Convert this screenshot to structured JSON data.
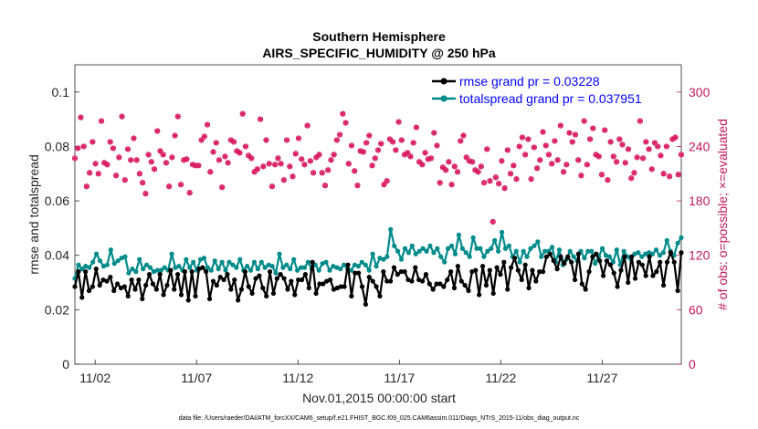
{
  "chart_data": {
    "type": "line",
    "title": "Southern Hemisphere",
    "subtitle": "AIRS_SPECIFIC_HUMIDITY @ 250 hPa",
    "xlabel": "Nov.01,2015 00:00:00 start",
    "ylabel_left": "rmse and totalspread",
    "ylabel_right": "# of obs: o=possible; ×=evaluated",
    "footnote": "data file: /Users/raeder/DAI/ATM_forcXX/CAM6_setup/f.e21.FHIST_BGC.f09_025.CAM6assim.011/Diags_NTrS_2015-11/obs_diag_output.nc",
    "x_ticks": [
      "11/02",
      "11/07",
      "11/12",
      "11/17",
      "11/22",
      "11/27"
    ],
    "x_tick_days": [
      2,
      7,
      12,
      17,
      22,
      27
    ],
    "xlim_days": [
      1.0,
      30.9
    ],
    "ylim_left": [
      0,
      0.11
    ],
    "yticks_left": [
      "0",
      "0.02",
      "0.04",
      "0.06",
      "0.08",
      "0.1"
    ],
    "yticks_left_values": [
      0,
      0.02,
      0.04,
      0.06,
      0.08,
      0.1
    ],
    "ylim_right": [
      0,
      330
    ],
    "yticks_right": [
      "0",
      "60",
      "120",
      "180",
      "240",
      "300"
    ],
    "yticks_right_values": [
      0,
      60,
      120,
      180,
      240,
      300
    ],
    "colors": {
      "rmse": "#000000",
      "spread": "#008b8b",
      "obs": "#d81b60",
      "legend_text": "#0000ff"
    },
    "legend": [
      {
        "name": "rmse grand pr = 0.03228",
        "color": "#000000"
      },
      {
        "name": "totalspread grand pr = 0.037951",
        "color": "#008b8b"
      }
    ],
    "series": [
      {
        "name": "rmse",
        "values": [
          0.0285,
          0.034,
          0.0245,
          0.034,
          0.027,
          0.0285,
          0.035,
          0.029,
          0.031,
          0.0305,
          0.032,
          0.027,
          0.0295,
          0.028,
          0.0285,
          0.025,
          0.031,
          0.0275,
          0.031,
          0.024,
          0.029,
          0.033,
          0.0295,
          0.0275,
          0.033,
          0.0255,
          0.029,
          0.0345,
          0.0275,
          0.033,
          0.0255,
          0.034,
          0.0235,
          0.034,
          0.025,
          0.035,
          0.0355,
          0.034,
          0.024,
          0.0305,
          0.029,
          0.032,
          0.031,
          0.033,
          0.0275,
          0.031,
          0.0235,
          0.0275,
          0.034,
          0.0285,
          0.026,
          0.0315,
          0.0325,
          0.028,
          0.025,
          0.034,
          0.026,
          0.0315,
          0.033,
          0.0315,
          0.0275,
          0.0305,
          0.0255,
          0.031,
          0.031,
          0.033,
          0.028,
          0.0375,
          0.026,
          0.0295,
          0.0295,
          0.0305,
          0.031,
          0.0275,
          0.028,
          0.0285,
          0.0285,
          0.0365,
          0.025,
          0.0335,
          0.0335,
          0.0285,
          0.022,
          0.032,
          0.0305,
          0.0285,
          0.025,
          0.034,
          0.0305,
          0.0305,
          0.0355,
          0.033,
          0.034,
          0.034,
          0.031,
          0.0305,
          0.0355,
          0.031,
          0.0305,
          0.033,
          0.0295,
          0.0275,
          0.0295,
          0.0295,
          0.0285,
          0.031,
          0.034,
          0.028,
          0.036,
          0.0305,
          0.029,
          0.027,
          0.034,
          0.0345,
          0.0255,
          0.036,
          0.029,
          0.0345,
          0.026,
          0.0355,
          0.033,
          0.0375,
          0.0275,
          0.0355,
          0.039,
          0.0345,
          0.031,
          0.0365,
          0.028,
          0.0345,
          0.0305,
          0.034,
          0.034,
          0.0395,
          0.0405,
          0.038,
          0.035,
          0.0395,
          0.037,
          0.0395,
          0.0375,
          0.031,
          0.0405,
          0.0295,
          0.0275,
          0.034,
          0.0395,
          0.0405,
          0.038,
          0.0325,
          0.038,
          0.0365,
          0.0335,
          0.0285,
          0.0345,
          0.0395,
          0.03,
          0.0395,
          0.0315,
          0.0375,
          0.0365,
          0.0325,
          0.0395,
          0.0325,
          0.034,
          0.0375,
          0.029,
          0.0375,
          0.041,
          0.0375,
          0.027,
          0.041
        ]
      },
      {
        "name": "totalspread",
        "values": [
          0.0315,
          0.0365,
          0.035,
          0.036,
          0.0355,
          0.0375,
          0.0405,
          0.038,
          0.036,
          0.0365,
          0.042,
          0.037,
          0.038,
          0.039,
          0.0395,
          0.0335,
          0.035,
          0.034,
          0.0385,
          0.035,
          0.0365,
          0.0355,
          0.034,
          0.0345,
          0.0345,
          0.0355,
          0.0345,
          0.0405,
          0.0355,
          0.036,
          0.0345,
          0.0385,
          0.0355,
          0.0375,
          0.0345,
          0.0385,
          0.039,
          0.0355,
          0.0345,
          0.038,
          0.035,
          0.0375,
          0.0345,
          0.0375,
          0.0365,
          0.0355,
          0.0385,
          0.0345,
          0.036,
          0.0345,
          0.0375,
          0.035,
          0.0375,
          0.0355,
          0.0365,
          0.036,
          0.0335,
          0.0405,
          0.0355,
          0.0365,
          0.035,
          0.0385,
          0.0345,
          0.0355,
          0.0355,
          0.0375,
          0.035,
          0.0365,
          0.0345,
          0.037,
          0.0375,
          0.0345,
          0.036,
          0.0355,
          0.035,
          0.0365,
          0.035,
          0.0345,
          0.0365,
          0.036,
          0.0375,
          0.0365,
          0.0345,
          0.0405,
          0.036,
          0.039,
          0.0385,
          0.0395,
          0.0495,
          0.0435,
          0.0415,
          0.0385,
          0.0425,
          0.041,
          0.0435,
          0.0405,
          0.0415,
          0.0425,
          0.0415,
          0.0435,
          0.041,
          0.0425,
          0.0395,
          0.0375,
          0.0425,
          0.0435,
          0.0405,
          0.0475,
          0.0425,
          0.041,
          0.0395,
          0.0465,
          0.0425,
          0.0425,
          0.0395,
          0.0415,
          0.0425,
          0.0455,
          0.0415,
          0.0485,
          0.0425,
          0.0435,
          0.0395,
          0.0415,
          0.0375,
          0.0415,
          0.0395,
          0.0425,
          0.0435,
          0.045,
          0.0395,
          0.0415,
          0.0415,
          0.043,
          0.0375,
          0.042,
          0.0365,
          0.0385,
          0.0415,
          0.0395,
          0.038,
          0.0415,
          0.039,
          0.0415,
          0.0415,
          0.037,
          0.0395,
          0.0425,
          0.04,
          0.0395,
          0.0375,
          0.042,
          0.0365,
          0.0415,
          0.0395,
          0.0385,
          0.0405,
          0.041,
          0.0395,
          0.0405,
          0.041,
          0.0405,
          0.042,
          0.04,
          0.041,
          0.0455,
          0.0415,
          0.04,
          0.0445,
          0.0465
        ]
      },
      {
        "name": "obs_possible",
        "values": [
          227,
          238,
          272,
          240,
          196,
          211,
          245,
          221,
          210,
          268,
          222,
          220,
          245,
          238,
          208,
          228,
          273,
          203,
          237,
          225,
          249,
          225,
          210,
          200,
          188,
          231,
          223,
          215,
          257,
          235,
          231,
          222,
          196,
          228,
          252,
          273,
          198,
          225,
          226,
          189,
          220,
          219,
          219,
          247,
          251,
          264,
          212,
          234,
          244,
          225,
          195,
          229,
          222,
          247,
          245,
          235,
          233,
          276,
          240,
          230,
          227,
          212,
          215,
          270,
          218,
          247,
          221,
          196,
          220,
          227,
          221,
          203,
          247,
          218,
          207,
          232,
          249,
          226,
          220,
          263,
          224,
          211,
          228,
          231,
          211,
          197,
          214,
          225,
          231,
          247,
          253,
          276,
          266,
          221,
          241,
          213,
          197,
          235,
          234,
          244,
          252,
          219,
          227,
          236,
          243,
          198,
          202,
          248,
          245,
          236,
          267,
          247,
          231,
          233,
          229,
          244,
          261,
          223,
          220,
          233,
          226,
          227,
          255,
          241,
          200,
          217,
          214,
          223,
          198,
          218,
          212,
          246,
          252,
          228,
          224,
          223,
          214,
          212,
          218,
          200,
          237,
          202,
          157,
          206,
          199,
          224,
          194,
          236,
          210,
          219,
          204,
          240,
          250,
          231,
          248,
          204,
          239,
          216,
          225,
          256,
          241,
          231,
          221,
          246,
          225,
          263,
          212,
          220,
          255,
          245,
          253,
          225,
          208,
          268,
          220,
          248,
          260,
          231,
          229,
          209,
          258,
          203,
          245,
          229,
          223,
          248,
          242,
          222,
          237,
          205,
          211,
          228,
          268,
          227,
          245,
          237,
          215,
          244,
          240,
          230,
          210,
          240,
          207,
          248,
          250,
          209,
          231
        ]
      },
      {
        "name": "obs_evaluated",
        "values": [
          227,
          238,
          272,
          240,
          196,
          211,
          245,
          221,
          210,
          268,
          222,
          220,
          245,
          238,
          208,
          228,
          273,
          203,
          237,
          225,
          249,
          225,
          210,
          200,
          188,
          231,
          223,
          215,
          257,
          235,
          231,
          222,
          196,
          228,
          252,
          273,
          198,
          225,
          226,
          189,
          220,
          219,
          219,
          247,
          251,
          264,
          212,
          234,
          244,
          225,
          195,
          229,
          222,
          247,
          245,
          235,
          233,
          276,
          240,
          230,
          227,
          212,
          215,
          270,
          218,
          247,
          221,
          196,
          220,
          227,
          221,
          203,
          247,
          218,
          207,
          232,
          249,
          226,
          220,
          263,
          224,
          211,
          228,
          231,
          211,
          197,
          214,
          225,
          231,
          247,
          253,
          276,
          266,
          221,
          241,
          213,
          197,
          235,
          234,
          244,
          252,
          219,
          227,
          236,
          243,
          198,
          202,
          248,
          245,
          236,
          267,
          247,
          231,
          233,
          229,
          244,
          261,
          223,
          220,
          233,
          226,
          227,
          255,
          241,
          200,
          217,
          214,
          223,
          198,
          218,
          212,
          246,
          252,
          228,
          224,
          223,
          214,
          212,
          218,
          200,
          237,
          202,
          157,
          206,
          199,
          224,
          194,
          236,
          210,
          219,
          204,
          240,
          250,
          231,
          248,
          204,
          239,
          216,
          225,
          256,
          241,
          231,
          221,
          246,
          225,
          263,
          212,
          220,
          255,
          245,
          253,
          225,
          208,
          268,
          220,
          248,
          260,
          231,
          229,
          209,
          258,
          203,
          245,
          229,
          223,
          248,
          242,
          222,
          237,
          205,
          211,
          228,
          268,
          227,
          245,
          237,
          215,
          244,
          240,
          230,
          210,
          240,
          207,
          248,
          250,
          209,
          231
        ]
      }
    ]
  }
}
